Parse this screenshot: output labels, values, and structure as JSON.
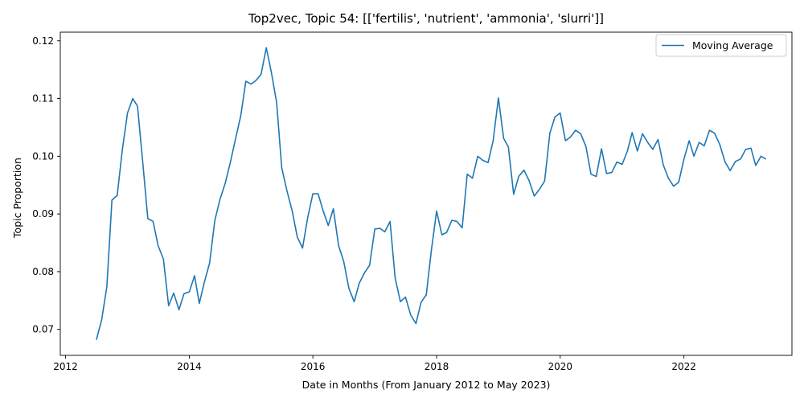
{
  "chart_data": {
    "type": "line",
    "title": "Top2vec, Topic 54: [['fertilis', 'nutrient', 'ammonia', 'slurri']]",
    "xlabel": "Date in Months (From January 2012 to May 2023)",
    "ylabel": "Topic Proportion",
    "xlim": [
      "2011-12-01",
      "2023-10-01"
    ],
    "ylim": [
      0.0655,
      0.1215
    ],
    "x_ticks": [
      "2012",
      "2014",
      "2016",
      "2018",
      "2020",
      "2022"
    ],
    "x_tick_dates": [
      "2012-01-01",
      "2014-01-01",
      "2016-01-01",
      "2018-01-01",
      "2020-01-01",
      "2022-01-01"
    ],
    "y_ticks": [
      0.07,
      0.08,
      0.09,
      0.1,
      0.11,
      0.12
    ],
    "y_tick_labels": [
      "0.07",
      "0.08",
      "0.09",
      "0.10",
      "0.11",
      "0.12"
    ],
    "grid": false,
    "legend_position": "top-right",
    "series": [
      {
        "name": "Moving Average",
        "color": "#1f77b4",
        "x": [
          "2012-07-01",
          "2012-08-01",
          "2012-09-01",
          "2012-10-01",
          "2012-11-01",
          "2012-12-01",
          "2013-01-01",
          "2013-02-01",
          "2013-03-01",
          "2013-04-01",
          "2013-05-01",
          "2013-06-01",
          "2013-07-01",
          "2013-08-01",
          "2013-09-01",
          "2013-10-01",
          "2013-11-01",
          "2013-12-01",
          "2014-01-01",
          "2014-02-01",
          "2014-03-01",
          "2014-04-01",
          "2014-05-01",
          "2014-06-01",
          "2014-07-01",
          "2014-08-01",
          "2014-09-01",
          "2014-10-01",
          "2014-11-01",
          "2014-12-01",
          "2015-01-01",
          "2015-02-01",
          "2015-03-01",
          "2015-04-01",
          "2015-05-01",
          "2015-06-01",
          "2015-07-01",
          "2015-08-01",
          "2015-09-01",
          "2015-10-01",
          "2015-11-01",
          "2015-12-01",
          "2016-01-01",
          "2016-02-01",
          "2016-03-01",
          "2016-04-01",
          "2016-05-01",
          "2016-06-01",
          "2016-07-01",
          "2016-08-01",
          "2016-09-01",
          "2016-10-01",
          "2016-11-01",
          "2016-12-01",
          "2017-01-01",
          "2017-02-01",
          "2017-03-01",
          "2017-04-01",
          "2017-05-01",
          "2017-06-01",
          "2017-07-01",
          "2017-08-01",
          "2017-09-01",
          "2017-10-01",
          "2017-11-01",
          "2017-12-01",
          "2018-01-01",
          "2018-02-01",
          "2018-03-01",
          "2018-04-01",
          "2018-05-01",
          "2018-06-01",
          "2018-07-01",
          "2018-08-01",
          "2018-09-01",
          "2018-10-01",
          "2018-11-01",
          "2018-12-01",
          "2019-01-01",
          "2019-02-01",
          "2019-03-01",
          "2019-04-01",
          "2019-05-01",
          "2019-06-01",
          "2019-07-01",
          "2019-08-01",
          "2019-09-01",
          "2019-10-01",
          "2019-11-01",
          "2019-12-01",
          "2020-01-01",
          "2020-02-01",
          "2020-03-01",
          "2020-04-01",
          "2020-05-01",
          "2020-06-01",
          "2020-07-01",
          "2020-08-01",
          "2020-09-01",
          "2020-10-01",
          "2020-11-01",
          "2020-12-01",
          "2021-01-01",
          "2021-02-01",
          "2021-03-01",
          "2021-04-01",
          "2021-05-01",
          "2021-06-01",
          "2021-07-01",
          "2021-08-01",
          "2021-09-01",
          "2021-10-01",
          "2021-11-01",
          "2021-12-01",
          "2022-01-01",
          "2022-02-01",
          "2022-03-01",
          "2022-04-01",
          "2022-05-01",
          "2022-06-01",
          "2022-07-01",
          "2022-08-01",
          "2022-09-01",
          "2022-10-01",
          "2022-11-01",
          "2022-12-01",
          "2023-01-01",
          "2023-02-01",
          "2023-03-01",
          "2023-04-01",
          "2023-05-01"
        ],
        "y": [
          0.0682,
          0.0716,
          0.0774,
          0.0924,
          0.0932,
          0.101,
          0.1075,
          0.11,
          0.1087,
          0.099,
          0.0892,
          0.0887,
          0.0845,
          0.0822,
          0.0741,
          0.0763,
          0.0734,
          0.0762,
          0.0765,
          0.0793,
          0.0745,
          0.0783,
          0.0815,
          0.0889,
          0.0925,
          0.0953,
          0.099,
          0.103,
          0.107,
          0.113,
          0.1125,
          0.1132,
          0.1142,
          0.1188,
          0.1145,
          0.1093,
          0.098,
          0.094,
          0.0905,
          0.086,
          0.0841,
          0.0893,
          0.0935,
          0.0935,
          0.0906,
          0.088,
          0.0909,
          0.0845,
          0.0818,
          0.0771,
          0.0748,
          0.078,
          0.0798,
          0.0811,
          0.0874,
          0.0875,
          0.0869,
          0.0887,
          0.0789,
          0.0748,
          0.0756,
          0.0725,
          0.071,
          0.0747,
          0.076,
          0.0837,
          0.0905,
          0.0864,
          0.0868,
          0.0889,
          0.0887,
          0.0876,
          0.0969,
          0.0962,
          0.1,
          0.0993,
          0.0989,
          0.1027,
          0.1101,
          0.1031,
          0.1016,
          0.0934,
          0.0965,
          0.0976,
          0.0958,
          0.0931,
          0.0943,
          0.0957,
          0.104,
          0.1068,
          0.1075,
          0.1027,
          0.1033,
          0.1045,
          0.1039,
          0.1017,
          0.0969,
          0.0965,
          0.1013,
          0.097,
          0.0972,
          0.099,
          0.0986,
          0.1009,
          0.1041,
          0.1009,
          0.1039,
          0.1024,
          0.1012,
          0.1029,
          0.0985,
          0.0962,
          0.0948,
          0.0955,
          0.0995,
          0.1027,
          0.1,
          0.1024,
          0.1018,
          0.1045,
          0.104,
          0.102,
          0.099,
          0.0975,
          0.0991,
          0.0995,
          0.1012,
          0.1014,
          0.0984,
          0.1,
          0.0995
        ]
      }
    ]
  }
}
